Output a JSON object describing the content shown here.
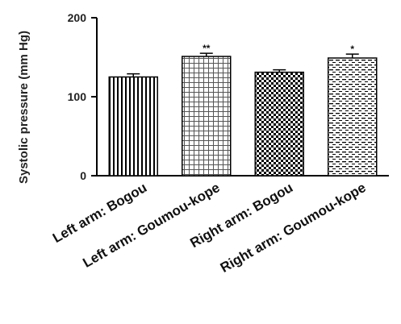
{
  "chart_data": {
    "type": "bar",
    "title": "",
    "xlabel": "",
    "ylabel": "Systolic pressure (mm Hg)",
    "ylim": [
      0,
      200
    ],
    "yticks": [
      0,
      100,
      200
    ],
    "grid": false,
    "categories": [
      "Left arm: Bogou",
      "Left arm: Goumou-kope",
      "Right arm: Bogou",
      "Right arm: Goumou-kope"
    ],
    "values": [
      125,
      151,
      131,
      149
    ],
    "errors": [
      4,
      4,
      3,
      5
    ],
    "annotations": [
      "",
      "**",
      "",
      "*"
    ],
    "fill_patterns": [
      "vertical-lines",
      "grid",
      "checkerboard",
      "horizontal-dashes"
    ],
    "colors": {
      "bar_stroke": "#000000",
      "pattern_ink": "#000000",
      "background": "#ffffff"
    }
  }
}
